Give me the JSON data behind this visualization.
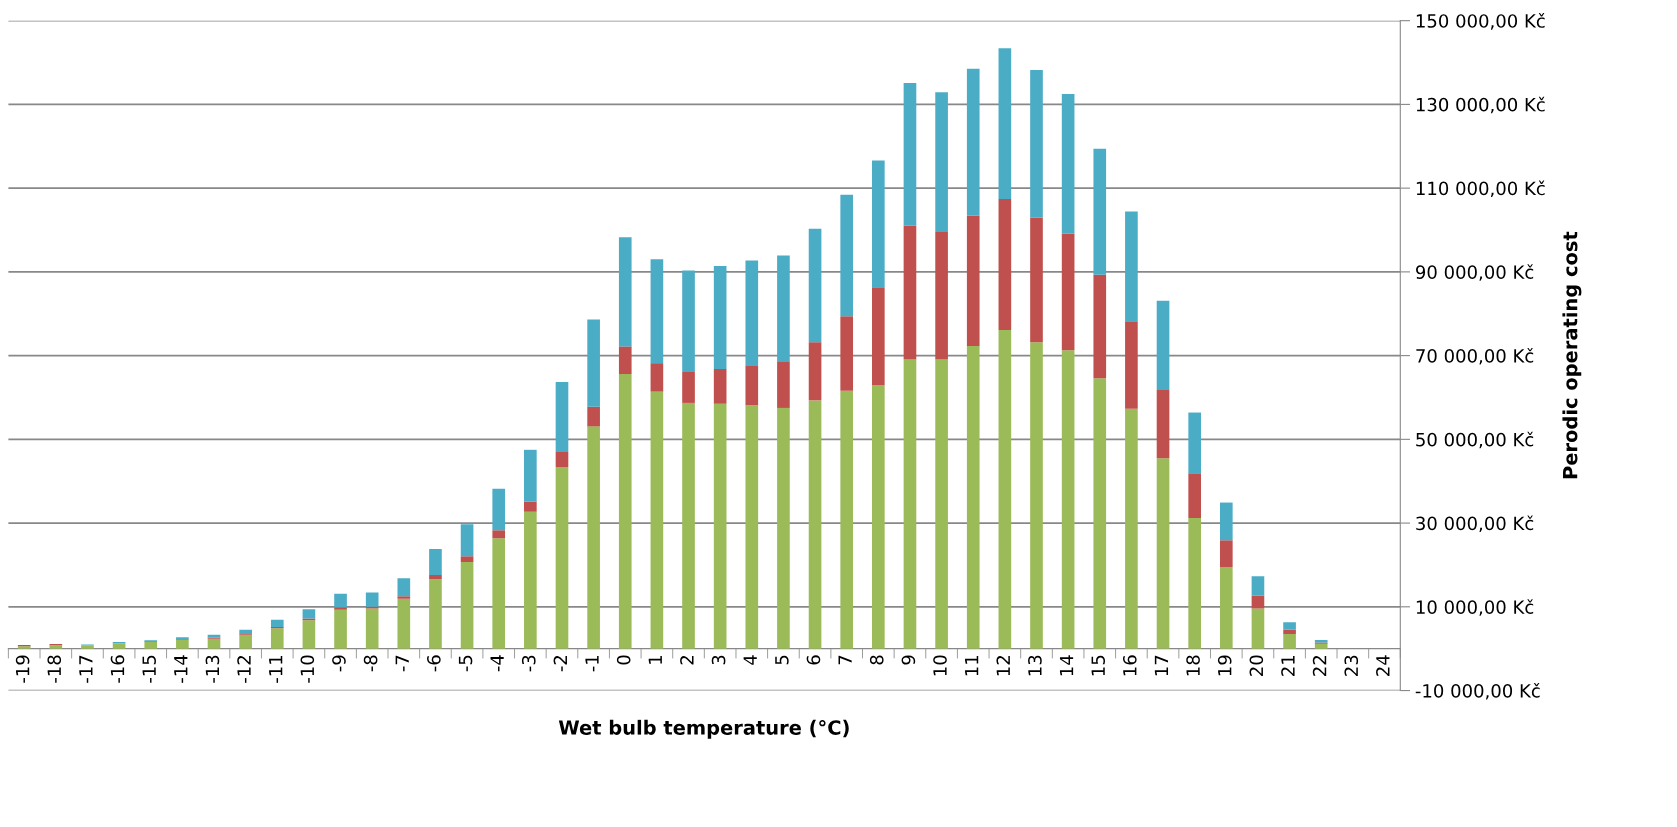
{
  "chart_data": {
    "type": "bar",
    "stacked": true,
    "xlabel": "Wet bulb temperature (°C)",
    "ylabel": "Perodic operating cost",
    "categories": [
      "-19",
      "-18",
      "-17",
      "-16",
      "-15",
      "-14",
      "-13",
      "-12",
      "-11",
      "-10",
      "-9",
      "-8",
      "-7",
      "-6",
      "-5",
      "-4",
      "-3",
      "-2",
      "-1",
      "0",
      "1",
      "2",
      "3",
      "4",
      "5",
      "6",
      "7",
      "8",
      "9",
      "10",
      "11",
      "12",
      "13",
      "14",
      "15",
      "16",
      "17",
      "18",
      "19",
      "20",
      "21",
      "22",
      "23",
      "24"
    ],
    "series": [
      {
        "color": "#9bbb59",
        "values": [
          600,
          800,
          800,
          1300,
          1600,
          2100,
          2400,
          3300,
          4900,
          6800,
          9300,
          9600,
          11900,
          16600,
          20700,
          26400,
          32700,
          43400,
          53100,
          65600,
          61400,
          58700,
          58500,
          58100,
          57500,
          59300,
          61600,
          63000,
          69100,
          69100,
          72300,
          76100,
          73200,
          71300,
          64600,
          57300,
          45500,
          31200,
          19500,
          9600,
          3500,
          1200,
          null,
          0
        ]
      },
      {
        "color": "#c0504d",
        "values": [
          300,
          300,
          null,
          0,
          null,
          null,
          200,
          200,
          300,
          400,
          600,
          400,
          600,
          1000,
          1400,
          1900,
          2400,
          3600,
          4700,
          6600,
          6800,
          7400,
          8300,
          9600,
          11000,
          13900,
          17800,
          23300,
          31900,
          30400,
          31100,
          31300,
          29800,
          27800,
          24700,
          20900,
          16300,
          10700,
          6400,
          3100,
          1100,
          300,
          0,
          0
        ]
      },
      {
        "color": "#4bacc6",
        "values": [
          0,
          0,
          200,
          300,
          400,
          600,
          700,
          1000,
          1700,
          2200,
          3200,
          3400,
          4300,
          6200,
          7600,
          9900,
          12400,
          16700,
          20800,
          26100,
          24800,
          24200,
          24600,
          25000,
          25400,
          27100,
          29000,
          30300,
          34100,
          33400,
          35100,
          36000,
          35200,
          33400,
          30100,
          26200,
          21300,
          14500,
          9000,
          4600,
          1700,
          600,
          0,
          0
        ]
      }
    ],
    "ylim": [
      -10000,
      150000
    ],
    "yticks": [
      {
        "value": -10000,
        "label": "-10 000,00 Kč"
      },
      {
        "value": 10000,
        "label": "10 000,00 Kč"
      },
      {
        "value": 30000,
        "label": "30 000,00 Kč"
      },
      {
        "value": 50000,
        "label": "50 000,00 Kč"
      },
      {
        "value": 70000,
        "label": "70 000,00 Kč"
      },
      {
        "value": 90000,
        "label": "90 000,00 Kč"
      },
      {
        "value": 110000,
        "label": "110 000,00 Kč"
      },
      {
        "value": 130000,
        "label": "130 000,00 Kč"
      },
      {
        "value": 150000,
        "label": "150 000,00 Kč"
      }
    ],
    "grid": "y",
    "legend": false
  }
}
